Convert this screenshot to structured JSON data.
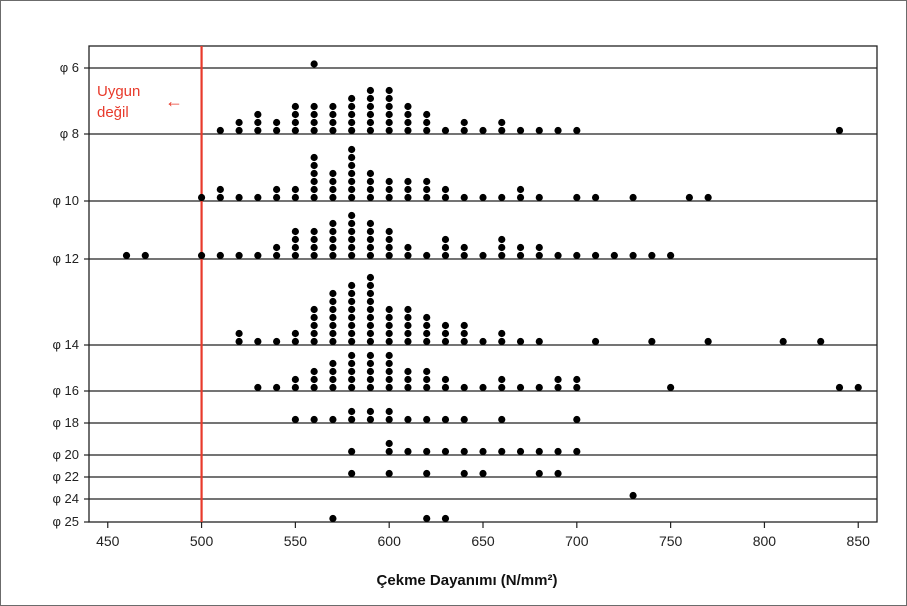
{
  "chart_data": {
    "type": "scatter",
    "subtype": "dotplot",
    "xlabel": "Çekme Dayanımı (N/mm²)",
    "xlim": [
      440,
      860
    ],
    "xticks": [
      450,
      500,
      550,
      600,
      650,
      700,
      750,
      800,
      850
    ],
    "grid": false,
    "reference_line": {
      "x": 500,
      "color": "#e83a2b"
    },
    "annotation": {
      "line1": "Uygun",
      "line2": "değil",
      "arrow": "←",
      "color": "#e83a2b"
    },
    "marker_color": "#000000",
    "rows": [
      {
        "label": "φ 6",
        "points": [
          [
            560,
            1
          ]
        ]
      },
      {
        "label": "φ 8",
        "points": [
          [
            510,
            1
          ],
          [
            520,
            2
          ],
          [
            530,
            3
          ],
          [
            540,
            2
          ],
          [
            550,
            4
          ],
          [
            560,
            4
          ],
          [
            570,
            4
          ],
          [
            580,
            5
          ],
          [
            590,
            6
          ],
          [
            600,
            6
          ],
          [
            610,
            4
          ],
          [
            620,
            3
          ],
          [
            630,
            1
          ],
          [
            640,
            2
          ],
          [
            650,
            1
          ],
          [
            660,
            2
          ],
          [
            670,
            1
          ],
          [
            680,
            1
          ],
          [
            690,
            1
          ],
          [
            700,
            1
          ],
          [
            840,
            1
          ]
        ]
      },
      {
        "label": "φ 10",
        "points": [
          [
            500,
            1
          ],
          [
            510,
            2
          ],
          [
            520,
            1
          ],
          [
            530,
            1
          ],
          [
            540,
            2
          ],
          [
            550,
            2
          ],
          [
            560,
            6
          ],
          [
            570,
            4
          ],
          [
            580,
            7
          ],
          [
            590,
            4
          ],
          [
            600,
            3
          ],
          [
            610,
            3
          ],
          [
            620,
            3
          ],
          [
            630,
            2
          ],
          [
            640,
            1
          ],
          [
            650,
            1
          ],
          [
            660,
            1
          ],
          [
            670,
            2
          ],
          [
            680,
            1
          ],
          [
            700,
            1
          ],
          [
            710,
            1
          ],
          [
            730,
            1
          ],
          [
            760,
            1
          ],
          [
            770,
            1
          ]
        ]
      },
      {
        "label": "φ 12",
        "points": [
          [
            460,
            1
          ],
          [
            470,
            1
          ],
          [
            500,
            1
          ],
          [
            510,
            1
          ],
          [
            520,
            1
          ],
          [
            530,
            1
          ],
          [
            540,
            2
          ],
          [
            550,
            4
          ],
          [
            560,
            4
          ],
          [
            570,
            5
          ],
          [
            580,
            6
          ],
          [
            590,
            5
          ],
          [
            600,
            4
          ],
          [
            610,
            2
          ],
          [
            620,
            1
          ],
          [
            630,
            3
          ],
          [
            640,
            2
          ],
          [
            650,
            1
          ],
          [
            660,
            3
          ],
          [
            670,
            2
          ],
          [
            680,
            2
          ],
          [
            690,
            1
          ],
          [
            700,
            1
          ],
          [
            710,
            1
          ],
          [
            720,
            1
          ],
          [
            730,
            1
          ],
          [
            740,
            1
          ],
          [
            750,
            1
          ]
        ]
      },
      {
        "label": "φ 14",
        "points": [
          [
            520,
            2
          ],
          [
            530,
            1
          ],
          [
            540,
            1
          ],
          [
            550,
            2
          ],
          [
            560,
            5
          ],
          [
            570,
            7
          ],
          [
            580,
            8
          ],
          [
            590,
            9
          ],
          [
            600,
            5
          ],
          [
            610,
            5
          ],
          [
            620,
            4
          ],
          [
            630,
            3
          ],
          [
            640,
            3
          ],
          [
            650,
            1
          ],
          [
            660,
            2
          ],
          [
            670,
            1
          ],
          [
            680,
            1
          ],
          [
            710,
            1
          ],
          [
            740,
            1
          ],
          [
            770,
            1
          ],
          [
            810,
            1
          ],
          [
            830,
            1
          ]
        ]
      },
      {
        "label": "φ 16",
        "points": [
          [
            530,
            1
          ],
          [
            540,
            1
          ],
          [
            550,
            2
          ],
          [
            560,
            3
          ],
          [
            570,
            4
          ],
          [
            580,
            5
          ],
          [
            590,
            5
          ],
          [
            600,
            5
          ],
          [
            610,
            3
          ],
          [
            620,
            3
          ],
          [
            630,
            2
          ],
          [
            640,
            1
          ],
          [
            650,
            1
          ],
          [
            660,
            2
          ],
          [
            670,
            1
          ],
          [
            680,
            1
          ],
          [
            690,
            2
          ],
          [
            700,
            2
          ],
          [
            750,
            1
          ],
          [
            840,
            1
          ],
          [
            850,
            1
          ]
        ]
      },
      {
        "label": "φ 18",
        "points": [
          [
            550,
            1
          ],
          [
            560,
            1
          ],
          [
            570,
            1
          ],
          [
            580,
            2
          ],
          [
            590,
            2
          ],
          [
            600,
            2
          ],
          [
            610,
            1
          ],
          [
            620,
            1
          ],
          [
            630,
            1
          ],
          [
            640,
            1
          ],
          [
            660,
            1
          ],
          [
            700,
            1
          ]
        ]
      },
      {
        "label": "φ 20",
        "points": [
          [
            580,
            1
          ],
          [
            600,
            2
          ],
          [
            610,
            1
          ],
          [
            620,
            1
          ],
          [
            630,
            1
          ],
          [
            640,
            1
          ],
          [
            650,
            1
          ],
          [
            660,
            1
          ],
          [
            670,
            1
          ],
          [
            680,
            1
          ],
          [
            690,
            1
          ],
          [
            700,
            1
          ]
        ]
      },
      {
        "label": "φ 22",
        "points": [
          [
            580,
            1
          ],
          [
            600,
            1
          ],
          [
            620,
            1
          ],
          [
            640,
            1
          ],
          [
            650,
            1
          ],
          [
            680,
            1
          ],
          [
            690,
            1
          ]
        ]
      },
      {
        "label": "φ 24",
        "points": [
          [
            730,
            1
          ]
        ]
      },
      {
        "label": "φ 25",
        "points": [
          [
            570,
            1
          ],
          [
            620,
            1
          ],
          [
            630,
            1
          ]
        ]
      }
    ]
  }
}
